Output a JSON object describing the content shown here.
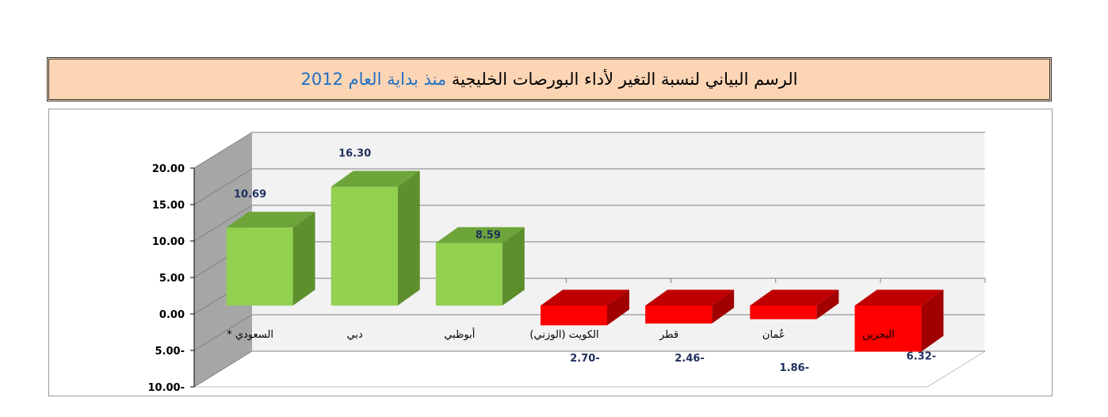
{
  "title": {
    "main": "الرسم البياني لنسبة التغير لأداء البورصات الخليجية",
    "accent": "منذ بداية العام 2012"
  },
  "colors": {
    "positive_front": "#92d050",
    "positive_top": "#6ea53a",
    "positive_side": "#5e8f2d",
    "negative_front": "#ff0000",
    "negative_top": "#c00000",
    "negative_side": "#a00000",
    "back_wall": "#f2f2f2",
    "side_wall": "#a6a6a6",
    "title_bg": "#fcd5b4",
    "accent": "#1f6fc5"
  },
  "chart_data": {
    "type": "bar",
    "title": "الرسم البياني لنسبة التغير لأداء البورصات الخليجية منذ بداية العام 2012",
    "categories": [
      "السعودي *",
      "دبي",
      "أبوظبي",
      "الكويت  (الوزني)",
      "قطر",
      "عُمان",
      "البحرين"
    ],
    "values": [
      10.69,
      16.3,
      8.59,
      -2.7,
      -2.46,
      -1.86,
      -6.32
    ],
    "data_labels": [
      "10.69",
      "16.30",
      "8.59",
      "2.70-",
      "2.46-",
      "1.86-",
      "6.32-"
    ],
    "y_ticks": [
      "20.00",
      "15.00",
      "10.00",
      "5.00",
      "0.00",
      "5.00-",
      "10.00-"
    ],
    "ylim": [
      -10,
      20
    ],
    "grid": true,
    "style": "3d-column"
  }
}
